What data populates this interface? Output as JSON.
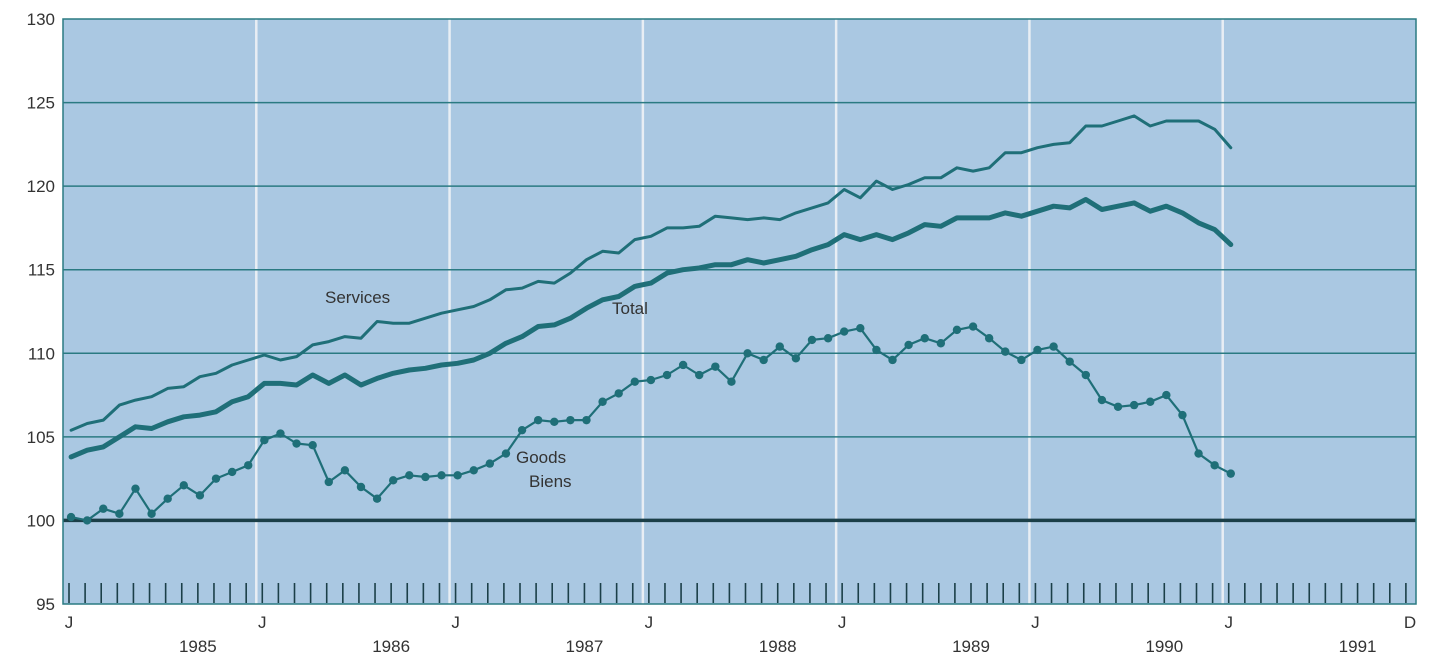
{
  "colors": {
    "plot_background": "#aac8e2",
    "gridline": "#2a7a82",
    "vertical_gridline": "#e8eef4",
    "series_line": "#1f6f78",
    "baseline": "#1b3f48",
    "text": "#333333"
  },
  "chart_data": {
    "type": "line",
    "title": "",
    "xlabel": "",
    "ylabel": "",
    "ylim": [
      95,
      130
    ],
    "yticks": [
      "95",
      "100",
      "105",
      "110",
      "115",
      "120",
      "125",
      "130"
    ],
    "x_axis": {
      "start_month": "1985-01",
      "end_month": "1991-12",
      "month_markers": [
        "J",
        "J",
        "J",
        "J",
        "J",
        "J",
        "J",
        "D"
      ],
      "year_labels": [
        "1985",
        "1986",
        "1987",
        "1988",
        "1989",
        "1990",
        "1991"
      ]
    },
    "grid": true,
    "reference_line": 100,
    "series": [
      {
        "name": "Services",
        "style": "line",
        "start_month": "1985-01",
        "values": [
          105.4,
          105.8,
          106.0,
          106.9,
          107.2,
          107.4,
          107.9,
          108.0,
          108.6,
          108.8,
          109.3,
          109.6,
          109.9,
          109.6,
          109.8,
          110.5,
          110.7,
          111.0,
          110.9,
          111.9,
          111.8,
          111.8,
          112.1,
          112.4,
          112.6,
          112.8,
          113.2,
          113.8,
          113.9,
          114.3,
          114.2,
          114.8,
          115.6,
          116.1,
          116.0,
          116.8,
          117.0,
          117.5,
          117.5,
          117.6,
          118.2,
          118.1,
          118.0,
          118.1,
          118.0,
          118.4,
          118.7,
          119.0,
          119.8,
          119.3,
          120.3,
          119.8,
          120.1,
          120.5,
          120.5,
          121.1,
          120.9,
          121.1,
          122.0,
          122.0,
          122.3,
          122.5,
          122.6,
          123.6,
          123.6,
          123.9,
          124.2,
          123.6,
          123.9,
          123.9,
          123.9,
          123.4,
          122.3
        ]
      },
      {
        "name": "Total",
        "style": "thick-line",
        "start_month": "1985-01",
        "values": [
          103.8,
          104.2,
          104.4,
          105.0,
          105.6,
          105.5,
          105.9,
          106.2,
          106.3,
          106.5,
          107.1,
          107.4,
          108.2,
          108.2,
          108.1,
          108.7,
          108.2,
          108.7,
          108.1,
          108.5,
          108.8,
          109.0,
          109.1,
          109.3,
          109.4,
          109.6,
          110.0,
          110.6,
          111.0,
          111.6,
          111.7,
          112.1,
          112.7,
          113.2,
          113.4,
          114.0,
          114.2,
          114.8,
          115.0,
          115.1,
          115.3,
          115.3,
          115.6,
          115.4,
          115.6,
          115.8,
          116.2,
          116.5,
          117.1,
          116.8,
          117.1,
          116.8,
          117.2,
          117.7,
          117.6,
          118.1,
          118.1,
          118.1,
          118.4,
          118.2,
          118.5,
          118.8,
          118.7,
          119.2,
          118.6,
          118.8,
          119.0,
          118.5,
          118.8,
          118.4,
          117.8,
          117.4,
          116.5
        ]
      },
      {
        "name": "Goods",
        "name_fr": "Biens",
        "style": "dotted-line",
        "start_month": "1985-01",
        "values": [
          100.2,
          100.0,
          100.7,
          100.4,
          101.9,
          100.4,
          101.3,
          102.1,
          101.5,
          102.5,
          102.9,
          103.3,
          104.8,
          105.2,
          104.6,
          104.5,
          102.3,
          103.0,
          102.0,
          101.3,
          102.4,
          102.7,
          102.6,
          102.7,
          102.7,
          103.0,
          103.4,
          104.0,
          105.4,
          106.0,
          105.9,
          106.0,
          106.0,
          107.1,
          107.6,
          108.3,
          108.4,
          108.7,
          109.3,
          108.7,
          109.2,
          108.3,
          110.0,
          109.6,
          110.4,
          109.7,
          110.8,
          110.9,
          111.3,
          111.5,
          110.2,
          109.6,
          110.5,
          110.9,
          110.6,
          111.4,
          111.6,
          110.9,
          110.1,
          109.6,
          110.2,
          110.4,
          109.5,
          108.7,
          107.2,
          106.8,
          106.9,
          107.1,
          107.5,
          106.3,
          104.0,
          103.3,
          102.8
        ]
      }
    ]
  }
}
